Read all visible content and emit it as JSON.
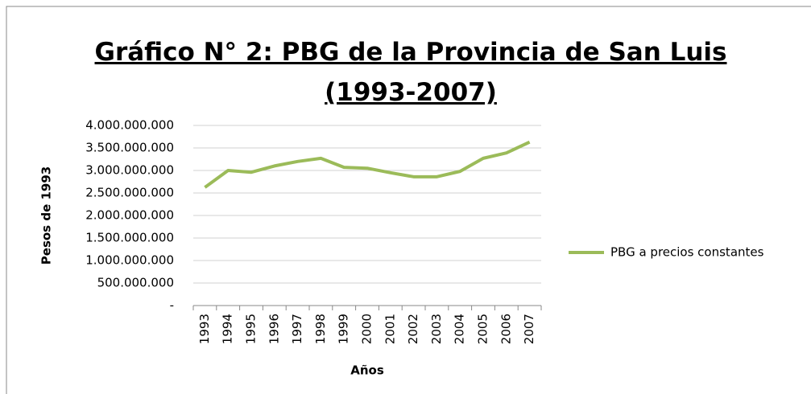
{
  "chart_data": {
    "type": "line",
    "title": "Gráfico N° 2: PBG de la Provincia de San Luis (1993-2007)",
    "y_label": "Pesos de 1993",
    "x_label": "Años",
    "categories": [
      "1993",
      "1994",
      "1995",
      "1996",
      "1997",
      "1998",
      "1999",
      "2000",
      "2001",
      "2002",
      "2003",
      "2004",
      "2005",
      "2006",
      "2007"
    ],
    "series": [
      {
        "name": "PBG a precios constantes",
        "color": "#9bbb59",
        "values": [
          2625000000,
          3000000000,
          2960000000,
          3100000000,
          3200000000,
          3270000000,
          3070000000,
          3050000000,
          2950000000,
          2860000000,
          2860000000,
          2980000000,
          3270000000,
          3390000000,
          3630000000
        ]
      }
    ],
    "ylim": [
      0,
      4000000000
    ],
    "yticks": [
      {
        "value": 0,
        "label": "-"
      },
      {
        "value": 500000000,
        "label": "500.000.000"
      },
      {
        "value": 1000000000,
        "label": "1.000.000.000"
      },
      {
        "value": 1500000000,
        "label": "1.500.000.000"
      },
      {
        "value": 2000000000,
        "label": "2.000.000.000"
      },
      {
        "value": 2500000000,
        "label": "2.500.000.000"
      },
      {
        "value": 3000000000,
        "label": "3.000.000.000"
      },
      {
        "value": 3500000000,
        "label": "3.500.000.000"
      },
      {
        "value": 4000000000,
        "label": "4.000.000.000"
      }
    ],
    "grid": true,
    "legend": "right"
  }
}
